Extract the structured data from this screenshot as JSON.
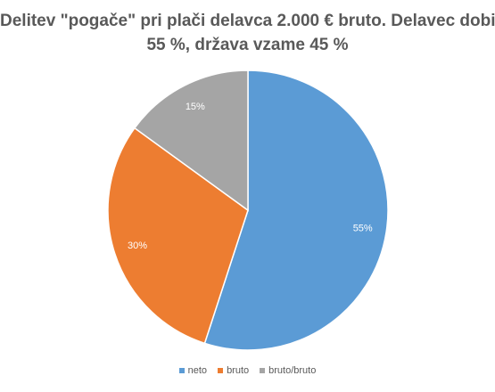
{
  "chart_data": {
    "type": "pie",
    "title": "Delitev \"pogače\" pri plači delavca 2.000 € bruto. Delavec dobi 55 %, država vzame 45 %",
    "title_lines": [
      "Delitev \"pogače\" pri plači delavca 2.000 € bruto. Delavec dobi",
      "55 %, država vzame 45 %"
    ],
    "categories": [
      "neto",
      "bruto",
      "bruto/bruto"
    ],
    "values": [
      55,
      30,
      15
    ],
    "data_labels": [
      "55%",
      "30%",
      "15%"
    ],
    "colors": [
      "#5B9BD5",
      "#ED7D31",
      "#A5A5A5"
    ],
    "legend_position": "bottom"
  }
}
